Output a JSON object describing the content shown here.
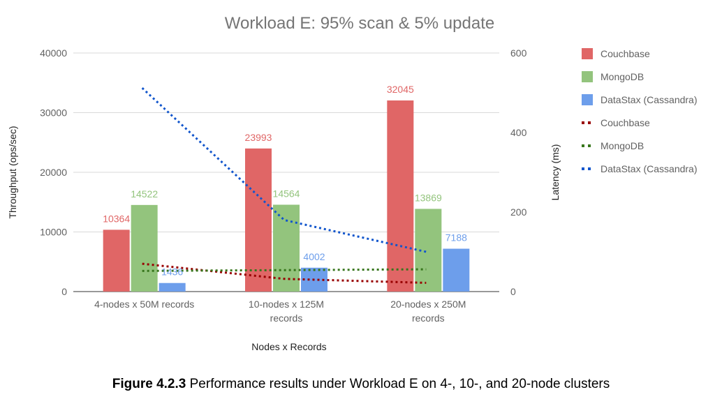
{
  "chart_data": {
    "type": "bar",
    "title": "Workload E: 95% scan & 5% update",
    "xlabel": "Nodes x Records",
    "ylabel": "Throughput (ops/sec)",
    "y2label": "Latency (ms)",
    "categories": [
      [
        "4-nodes x 50M records"
      ],
      [
        "10-nodes x 125M",
        "records"
      ],
      [
        "20-nodes x 250M",
        "records"
      ]
    ],
    "ylim": [
      0,
      40000
    ],
    "yticks": [
      0,
      10000,
      20000,
      30000,
      40000
    ],
    "y2lim": [
      0,
      600
    ],
    "y2ticks": [
      0,
      200,
      400,
      600
    ],
    "grid": true,
    "legend_position": "right",
    "series": [
      {
        "name": "Couchbase",
        "kind": "bar",
        "axis": "left",
        "color": "#e06666",
        "values": [
          10364,
          23993,
          32045
        ]
      },
      {
        "name": "MongoDB",
        "kind": "bar",
        "axis": "left",
        "color": "#93c47d",
        "values": [
          14522,
          14564,
          13869
        ]
      },
      {
        "name": "DataStax (Cassandra)",
        "kind": "bar",
        "axis": "left",
        "color": "#6d9eeb",
        "values": [
          1436,
          4002,
          7188
        ]
      },
      {
        "name": "Couchbase",
        "kind": "line",
        "axis": "right",
        "color": "#990000",
        "values": [
          70,
          32,
          22
        ]
      },
      {
        "name": "MongoDB",
        "kind": "line",
        "axis": "right",
        "color": "#38761d",
        "values": [
          52,
          54,
          56
        ]
      },
      {
        "name": "DataStax (Cassandra)",
        "kind": "line",
        "axis": "right",
        "color": "#1155cc",
        "values": [
          512,
          180,
          100
        ]
      }
    ]
  },
  "caption": {
    "bold": "Figure 4.2.3",
    "text": " Performance results under Workload E on 4-, 10-, and 20-node clusters"
  }
}
